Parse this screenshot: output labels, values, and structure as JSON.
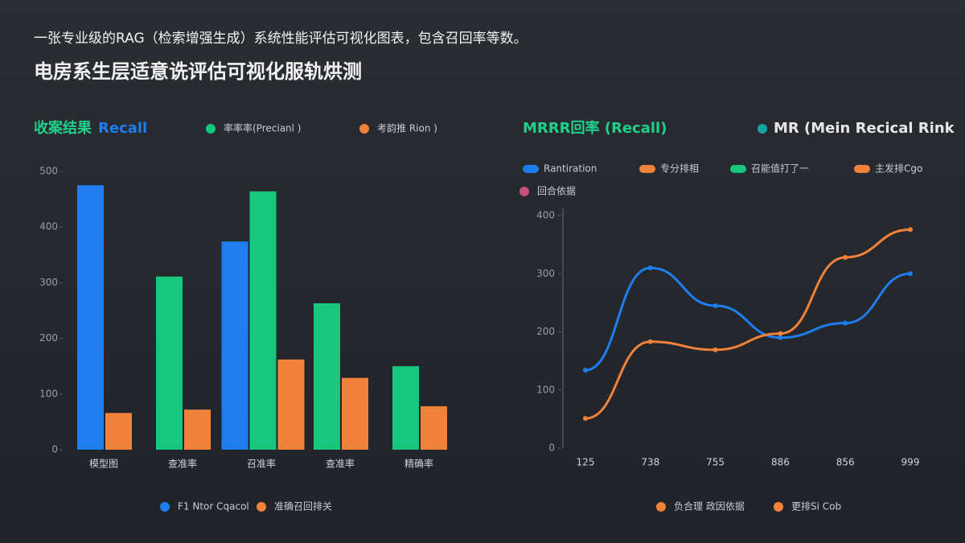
{
  "header": {
    "title": "一张专业级的RAG（检索增强生成）系统性能评估可视化图表，包含召回率等数。",
    "subtitle": "电房系生层适意诜评估可视化服轨烘测"
  },
  "chart_data": [
    {
      "type": "bar",
      "title": "收案结果",
      "subtitle": "Recall",
      "categories": [
        "模型图",
        "查准率",
        "召准率",
        "查准率",
        "精确率"
      ],
      "series": [
        {
          "name": "F1 Ntor Cqacol",
          "color": "#1e7ef0",
          "legend_position": "bottom",
          "values": [
            475,
            null,
            374,
            null,
            null
          ]
        },
        {
          "name": "率率率(Precianl )",
          "color": "#17c77f",
          "legend_position": "top",
          "values": [
            null,
            311,
            464,
            263,
            150
          ]
        },
        {
          "name": "准确召回排关",
          "color": "#f0823a",
          "legend_position": "bottom",
          "values": [
            66,
            72,
            162,
            129,
            78
          ]
        }
      ],
      "legend_extra": [
        {
          "name": "考韵推 Rion )",
          "color": "#f0823a",
          "position": "top"
        }
      ],
      "ylim": [
        0,
        500
      ],
      "yticks": [
        0,
        100,
        200,
        300,
        400,
        500
      ]
    },
    {
      "type": "line",
      "title": "MRRR回率 (Recall)",
      "subtitle": "MR (Mein Recical Rink",
      "categories": [
        "125",
        "738",
        "755",
        "886",
        "856",
        "999"
      ],
      "series": [
        {
          "name": "Rantiration",
          "color": "#1e7ef0",
          "legend_position": "top",
          "values": [
            134,
            310,
            245,
            190,
            215,
            300
          ]
        },
        {
          "name": "专分排相",
          "color": "#f0823a",
          "legend_position": "top",
          "values": [
            51,
            183,
            169,
            197,
            328,
            376
          ]
        }
      ],
      "legend_extra": [
        {
          "name": "召能值打了一",
          "color": "#17c77f",
          "position": "top"
        },
        {
          "name": "主发排Cgo",
          "color": "#f0823a",
          "position": "top"
        },
        {
          "name": "回合依据",
          "color": "#c9507a",
          "position": "top2"
        },
        {
          "name": "负合理 政因依据",
          "color": "#f0823a",
          "position": "bottom"
        },
        {
          "name": "更排Si Cob",
          "color": "#f0823a",
          "position": "bottom"
        }
      ],
      "ylim": [
        0,
        400
      ],
      "yticks": [
        0,
        100,
        200,
        300,
        400
      ]
    }
  ]
}
